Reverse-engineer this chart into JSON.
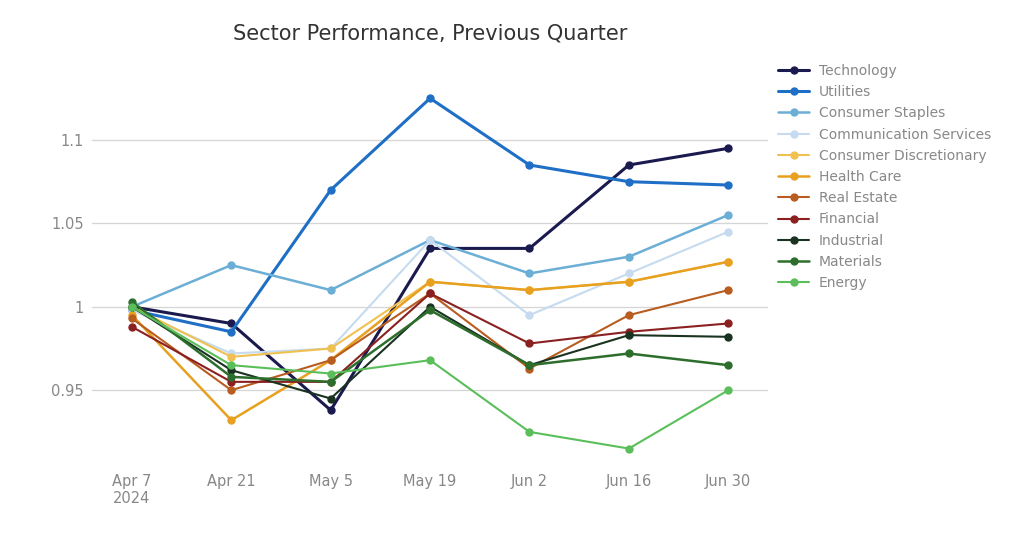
{
  "title": "Sector Performance, Previous Quarter",
  "x_labels": [
    "Apr 7\n2024",
    "Apr 21",
    "May 5",
    "May 19",
    "Jun 2",
    "Jun 16",
    "Jun 30"
  ],
  "x_positions": [
    0,
    1,
    2,
    3,
    4,
    5,
    6
  ],
  "series": [
    {
      "name": "Technology",
      "color": "#1a1a4e",
      "linewidth": 2.2,
      "values": [
        1.0,
        0.99,
        0.938,
        1.035,
        1.035,
        1.085,
        1.095
      ]
    },
    {
      "name": "Utilities",
      "color": "#1f6fc6",
      "linewidth": 2.2,
      "values": [
        0.998,
        0.985,
        1.07,
        1.125,
        1.085,
        1.075,
        1.073
      ]
    },
    {
      "name": "Consumer Staples",
      "color": "#6baed6",
      "linewidth": 1.8,
      "values": [
        1.0,
        1.025,
        1.01,
        1.04,
        1.02,
        1.03,
        1.055
      ]
    },
    {
      "name": "Communication Services",
      "color": "#c6dbef",
      "linewidth": 1.5,
      "values": [
        0.998,
        0.972,
        0.975,
        1.04,
        0.995,
        1.02,
        1.045
      ]
    },
    {
      "name": "Consumer Discretionary",
      "color": "#f0c050",
      "linewidth": 1.5,
      "values": [
        1.0,
        0.97,
        0.975,
        1.015,
        1.01,
        1.015,
        1.027
      ]
    },
    {
      "name": "Health Care",
      "color": "#e8a020",
      "linewidth": 1.8,
      "values": [
        0.995,
        0.932,
        0.968,
        1.015,
        1.01,
        1.015,
        1.027
      ]
    },
    {
      "name": "Real Estate",
      "color": "#b85c20",
      "linewidth": 1.5,
      "values": [
        0.993,
        0.95,
        0.968,
        1.008,
        0.963,
        0.995,
        1.01
      ]
    },
    {
      "name": "Financial",
      "color": "#8b2020",
      "linewidth": 1.5,
      "values": [
        0.988,
        0.955,
        0.955,
        1.008,
        0.978,
        0.985,
        0.99
      ]
    },
    {
      "name": "Industrial",
      "color": "#1a3320",
      "linewidth": 1.5,
      "values": [
        1.0,
        0.962,
        0.945,
        1.0,
        0.965,
        0.983,
        0.982
      ]
    },
    {
      "name": "Materials",
      "color": "#2d6e2d",
      "linewidth": 1.8,
      "values": [
        1.003,
        0.958,
        0.955,
        0.998,
        0.965,
        0.972,
        0.965
      ]
    },
    {
      "name": "Energy",
      "color": "#5abf5a",
      "linewidth": 1.5,
      "values": [
        1.0,
        0.965,
        0.96,
        0.968,
        0.925,
        0.915,
        0.95
      ]
    }
  ],
  "ylim": [
    0.905,
    1.145
  ],
  "yticks": [
    0.95,
    1.0,
    1.05,
    1.1
  ],
  "ytick_labels": [
    "0.95",
    "1",
    "1.05",
    "1.1"
  ],
  "background_color": "#ffffff",
  "grid_color": "#d5d5d5",
  "title_fontsize": 15,
  "tick_fontsize": 10.5,
  "tick_color": "#888888",
  "legend_fontsize": 10,
  "legend_label_color": "#888888"
}
